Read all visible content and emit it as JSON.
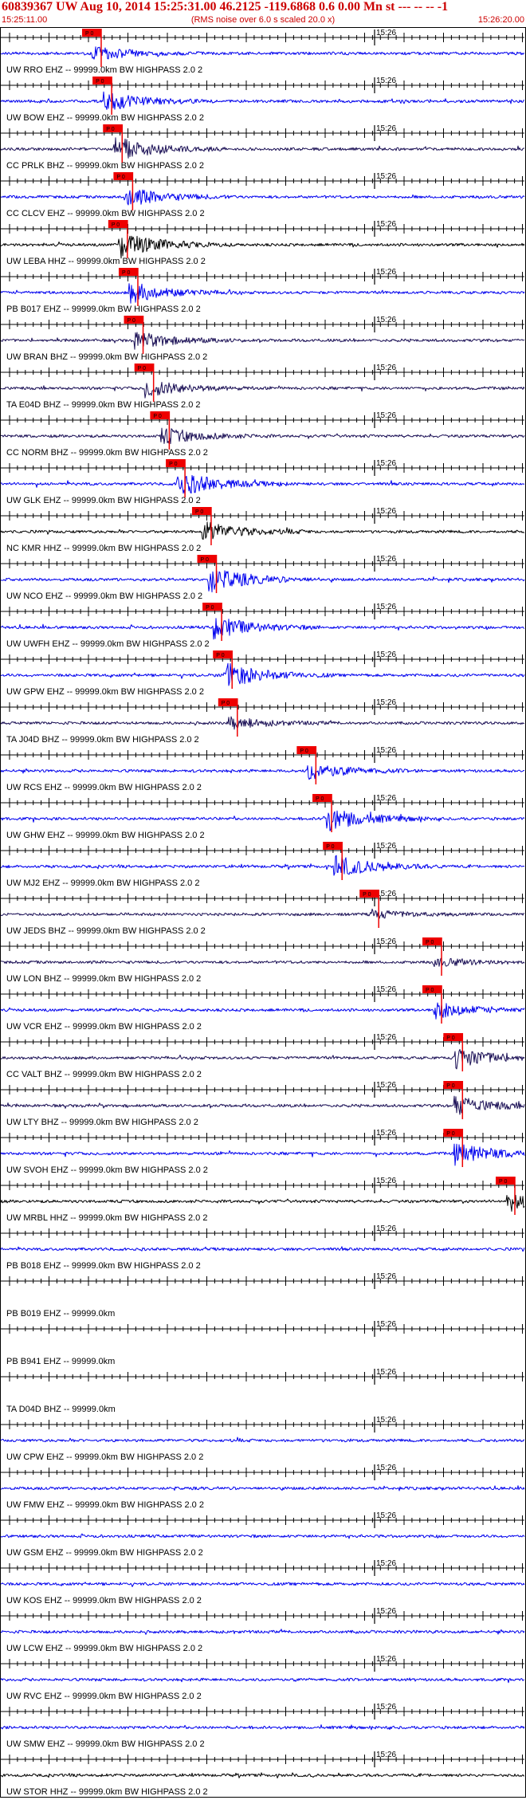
{
  "header": {
    "title": "60839367 UW Aug 10, 2014 15:25:31.00   46.2125 -119.6868  0.6 0.00 Mn st --- -- --  -1",
    "start_time": "15:25:11.00",
    "rms_note": "(RMS noise over 6.0 s scaled 20.0 x)",
    "end_time": "15:26:20.00"
  },
  "time_marker": "15:26",
  "pick_label": "P 0",
  "colors": {
    "header_red": "#cc0000",
    "trace_blue": "#0000ee",
    "trace_black": "#000000",
    "trace_navy": "#1a0f55",
    "pick_red": "#ee0000"
  },
  "traces": [
    {
      "label": "UW RRO EHZ -- 99999.0km BW  HIGHPASS  2.0  2",
      "color": "blue",
      "pick": 0.175,
      "amp": 0.25,
      "active": true
    },
    {
      "label": "UW BOW EHZ -- 99999.0km BW  HIGHPASS  2.0  2",
      "color": "blue",
      "pick": 0.195,
      "amp": 0.35,
      "active": true
    },
    {
      "label": "CC PRLK BHZ -- 99999.0km BW  HIGHPASS  2.0  2",
      "color": "navy",
      "pick": 0.215,
      "amp": 0.45,
      "active": true
    },
    {
      "label": "CC CLCV EHZ -- 99999.0km BW  HIGHPASS  2.0  2",
      "color": "blue",
      "pick": 0.235,
      "amp": 0.35,
      "active": true
    },
    {
      "label": "UW LEBA HHZ -- 99999.0km BW  HIGHPASS  2.0  2",
      "color": "black",
      "pick": 0.225,
      "amp": 0.45,
      "active": true
    },
    {
      "label": "PB B017 EHZ -- 99999.0km BW  HIGHPASS  2.0  2",
      "color": "blue",
      "pick": 0.245,
      "amp": 0.35,
      "active": true
    },
    {
      "label": "UW BRAN BHZ -- 99999.0km BW  HIGHPASS  2.0  2",
      "color": "navy",
      "pick": 0.255,
      "amp": 0.3,
      "active": true
    },
    {
      "label": "TA E04D BHZ -- 99999.0km BW  HIGHPASS  2.0  2",
      "color": "navy",
      "pick": 0.275,
      "amp": 0.3,
      "active": true
    },
    {
      "label": "CC NORM BHZ -- 99999.0km BW  HIGHPASS  2.0  2",
      "color": "navy",
      "pick": 0.305,
      "amp": 0.3,
      "active": true
    },
    {
      "label": "UW GLK EHZ -- 99999.0km BW  HIGHPASS  2.0  2",
      "color": "blue",
      "pick": 0.335,
      "amp": 0.45,
      "active": true
    },
    {
      "label": "NC KMR HHZ -- 99999.0km BW  HIGHPASS  2.0  2",
      "color": "black",
      "pick": 0.385,
      "amp": 0.35,
      "active": true
    },
    {
      "label": "UW NCO EHZ -- 99999.0km BW  HIGHPASS  2.0  2",
      "color": "blue",
      "pick": 0.395,
      "amp": 0.45,
      "active": true
    },
    {
      "label": "UW UWFH EHZ -- 99999.0km BW  HIGHPASS  2.0  2",
      "color": "blue",
      "pick": 0.405,
      "amp": 0.4,
      "active": true
    },
    {
      "label": "UW GPW EHZ -- 99999.0km BW  HIGHPASS  2.0  2",
      "color": "blue",
      "pick": 0.425,
      "amp": 0.45,
      "active": true
    },
    {
      "label": "TA J04D BHZ -- 99999.0km BW  HIGHPASS  2.0  2",
      "color": "navy",
      "pick": 0.435,
      "amp": 0.2,
      "active": true
    },
    {
      "label": "UW RCS EHZ -- 99999.0km BW  HIGHPASS  2.0  2",
      "color": "blue",
      "pick": 0.585,
      "amp": 0.3,
      "active": true
    },
    {
      "label": "UW GHW EHZ -- 99999.0km BW  HIGHPASS  2.0  2",
      "color": "blue",
      "pick": 0.615,
      "amp": 0.45,
      "active": true
    },
    {
      "label": "UW MJ2 EHZ -- 99999.0km BW  HIGHPASS  2.0  2",
      "color": "blue",
      "pick": 0.635,
      "amp": 0.4,
      "active": true
    },
    {
      "label": "UW JEDS BHZ -- 99999.0km BW  HIGHPASS  2.0  2",
      "color": "navy",
      "pick": 0.705,
      "amp": 0.15,
      "active": true
    },
    {
      "label": "UW LON BHZ -- 99999.0km BW  HIGHPASS  2.0  2",
      "color": "navy",
      "pick": 0.825,
      "amp": 0.15,
      "active": true
    },
    {
      "label": "UW VCR EHZ -- 99999.0km BW  HIGHPASS  2.0  2",
      "color": "blue",
      "pick": 0.825,
      "amp": 0.3,
      "active": true
    },
    {
      "label": "CC VALT BHZ -- 99999.0km BW  HIGHPASS  2.0  2",
      "color": "navy",
      "pick": 0.865,
      "amp": 0.4,
      "active": true
    },
    {
      "label": "UW LTY BHZ -- 99999.0km BW  HIGHPASS  2.0  2",
      "color": "navy",
      "pick": 0.865,
      "amp": 0.35,
      "active": true
    },
    {
      "label": "UW SVOH EHZ -- 99999.0km BW  HIGHPASS  2.0  2",
      "color": "blue",
      "pick": 0.865,
      "amp": 0.4,
      "active": true
    },
    {
      "label": "UW MRBL HHZ -- 99999.0km BW  HIGHPASS  2.0  2",
      "color": "black",
      "pick": 0.965,
      "amp": 0.3,
      "active": true
    },
    {
      "label": "PB B018 EHZ -- 99999.0km BW  HIGHPASS  2.0  2",
      "color": "blue",
      "pick": null,
      "amp": 0.25,
      "active": true
    },
    {
      "label": "PB B019 EHZ -- 99999.0km",
      "color": "blue",
      "pick": null,
      "amp": 0,
      "active": false
    },
    {
      "label": "PB B941 EHZ -- 99999.0km",
      "color": "blue",
      "pick": null,
      "amp": 0,
      "active": false
    },
    {
      "label": "TA D04D BHZ -- 99999.0km",
      "color": "blue",
      "pick": null,
      "amp": 0,
      "active": false
    },
    {
      "label": "UW CPW EHZ -- 99999.0km BW  HIGHPASS  2.0  2",
      "color": "blue",
      "pick": null,
      "amp": 0.35,
      "active": true
    },
    {
      "label": "UW FMW EHZ -- 99999.0km BW  HIGHPASS  2.0  2",
      "color": "blue",
      "pick": null,
      "amp": 0.3,
      "active": true
    },
    {
      "label": "UW GSM EHZ -- 99999.0km BW  HIGHPASS  2.0  2",
      "color": "blue",
      "pick": null,
      "amp": 0.3,
      "active": true
    },
    {
      "label": "UW KOS EHZ -- 99999.0km BW  HIGHPASS  2.0  2",
      "color": "blue",
      "pick": null,
      "amp": 0.3,
      "active": true
    },
    {
      "label": "UW LCW EHZ -- 99999.0km BW  HIGHPASS  2.0  2",
      "color": "blue",
      "pick": null,
      "amp": 0.3,
      "active": true
    },
    {
      "label": "UW RVC EHZ -- 99999.0km BW  HIGHPASS  2.0  2",
      "color": "blue",
      "pick": null,
      "amp": 0.35,
      "active": true
    },
    {
      "label": "UW SMW EHZ -- 99999.0km BW  HIGHPASS  2.0  2",
      "color": "blue",
      "pick": null,
      "amp": 0.3,
      "active": true
    },
    {
      "label": "UW STOR HHZ -- 99999.0km BW  HIGHPASS  2.0  2",
      "color": "black",
      "pick": null,
      "amp": 0.35,
      "active": true
    }
  ]
}
